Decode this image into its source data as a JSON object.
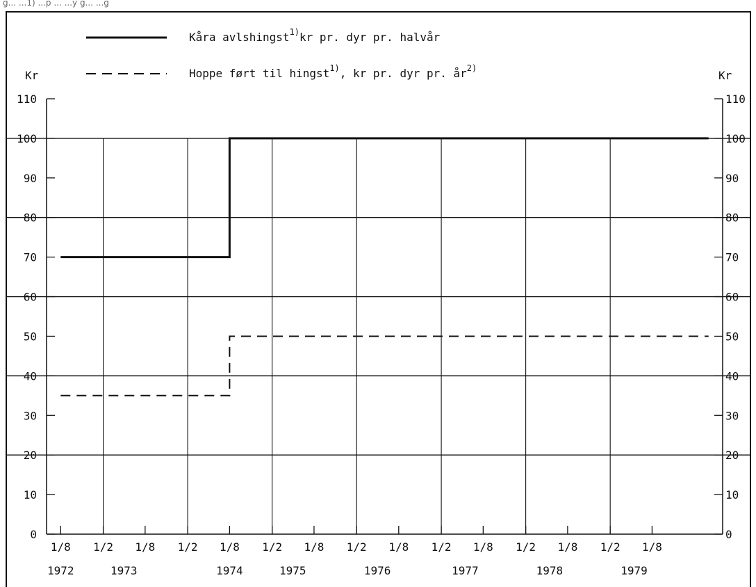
{
  "caption_fragment": "g... ...1) ...p ... ...y g... ...g",
  "chart_data": {
    "type": "line",
    "y_unit_left": "Kr",
    "y_unit_right": "Kr",
    "ylim": [
      0,
      110
    ],
    "y_ticks": [
      0,
      10,
      20,
      30,
      40,
      50,
      60,
      70,
      80,
      90,
      100,
      110
    ],
    "xlim": [
      "1972-06-01",
      "1980-06-01"
    ],
    "x_ticks": [
      {
        "date": "1972-08-01",
        "label": "1/8"
      },
      {
        "date": "1973-02-01",
        "label": "1/2"
      },
      {
        "date": "1973-08-01",
        "label": "1/8"
      },
      {
        "date": "1974-02-01",
        "label": "1/2"
      },
      {
        "date": "1974-08-01",
        "label": "1/8"
      },
      {
        "date": "1975-02-01",
        "label": "1/2"
      },
      {
        "date": "1975-08-01",
        "label": "1/8"
      },
      {
        "date": "1976-02-01",
        "label": "1/2"
      },
      {
        "date": "1976-08-01",
        "label": "1/8"
      },
      {
        "date": "1977-02-01",
        "label": "1/2"
      },
      {
        "date": "1977-08-01",
        "label": "1/8"
      },
      {
        "date": "1978-02-01",
        "label": "1/2"
      },
      {
        "date": "1978-08-01",
        "label": "1/8"
      },
      {
        "date": "1979-02-01",
        "label": "1/2"
      },
      {
        "date": "1979-08-01",
        "label": "1/8"
      }
    ],
    "year_labels": [
      {
        "date": "1972-08-01",
        "label": "1972"
      },
      {
        "date": "1973-05-01",
        "label": "1973"
      },
      {
        "date": "1974-08-01",
        "label": "1974"
      },
      {
        "date": "1975-05-01",
        "label": "1975"
      },
      {
        "date": "1976-05-01",
        "label": "1976"
      },
      {
        "date": "1977-05-15",
        "label": "1977"
      },
      {
        "date": "1978-05-15",
        "label": "1978"
      },
      {
        "date": "1979-05-15",
        "label": "1979"
      }
    ],
    "vertical_grid_dates": [
      "1973-02-01",
      "1974-02-01",
      "1975-02-01",
      "1976-02-01",
      "1977-02-01",
      "1978-02-01",
      "1979-02-01"
    ],
    "grid": true,
    "legend_position": "top",
    "series": [
      {
        "name": "Kåra avlshingst",
        "sup": "1)",
        "name_rest": "kr pr. dyr pr. halvår",
        "style": "solid",
        "color": "#111111",
        "points": [
          {
            "x": "1972-08-01",
            "y": 70
          },
          {
            "x": "1974-08-01",
            "y": 70
          },
          {
            "x": "1974-08-01",
            "y": 100
          },
          {
            "x": "1980-04-01",
            "y": 100
          }
        ]
      },
      {
        "name": "Hoppe ført til hingst",
        "sup": "1)",
        "name_rest": ", kr pr. dyr pr. år",
        "sup2": "2)",
        "style": "dashed",
        "color": "#111111",
        "points": [
          {
            "x": "1972-08-01",
            "y": 35
          },
          {
            "x": "1974-08-01",
            "y": 35
          },
          {
            "x": "1974-08-01",
            "y": 50
          },
          {
            "x": "1980-04-01",
            "y": 50
          }
        ]
      }
    ]
  }
}
